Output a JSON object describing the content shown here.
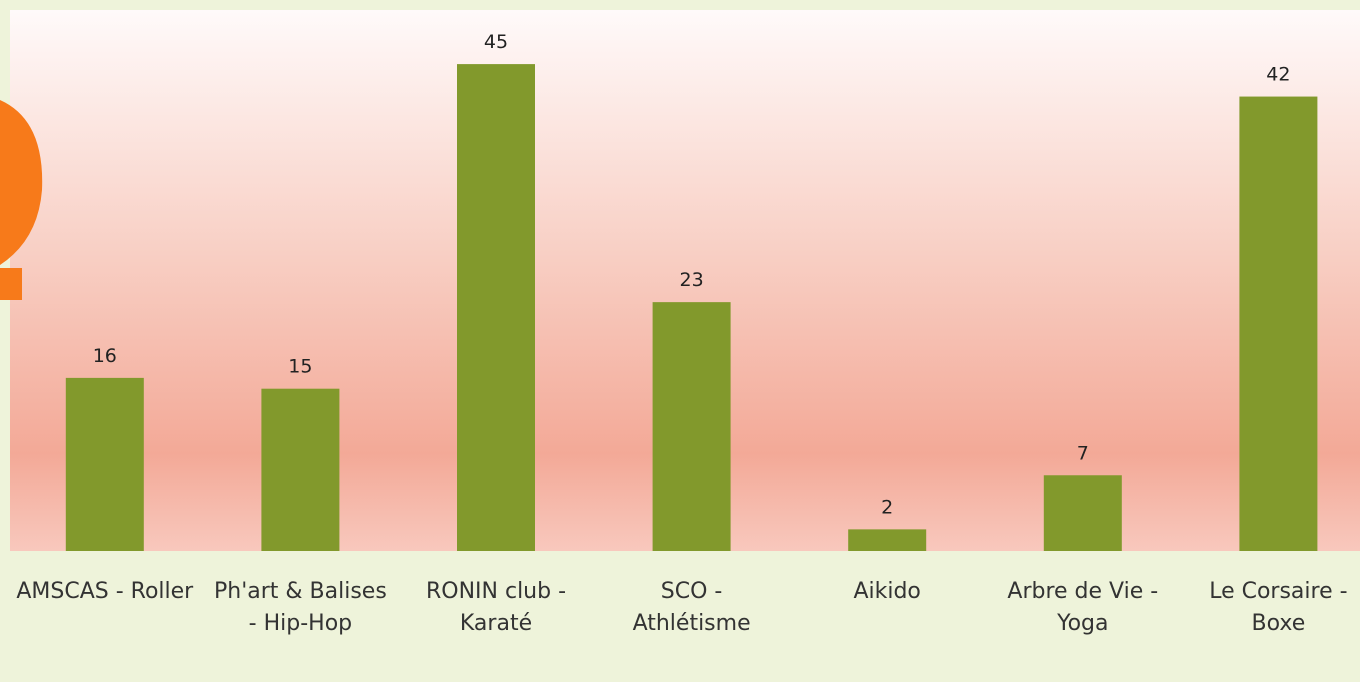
{
  "chart_data": {
    "type": "bar",
    "categories": [
      "AMSCAS - Roller",
      "Ph'art & Balises - Hip-Hop",
      "RONIN  club - Karaté",
      "SCO - Athlétisme",
      "Aikido",
      "Arbre de Vie - Yoga",
      "Le Corsaire - Boxe"
    ],
    "values": [
      16,
      15,
      45,
      23,
      2,
      7,
      42
    ],
    "color": "#82992c",
    "ylim": [
      0,
      50
    ]
  }
}
